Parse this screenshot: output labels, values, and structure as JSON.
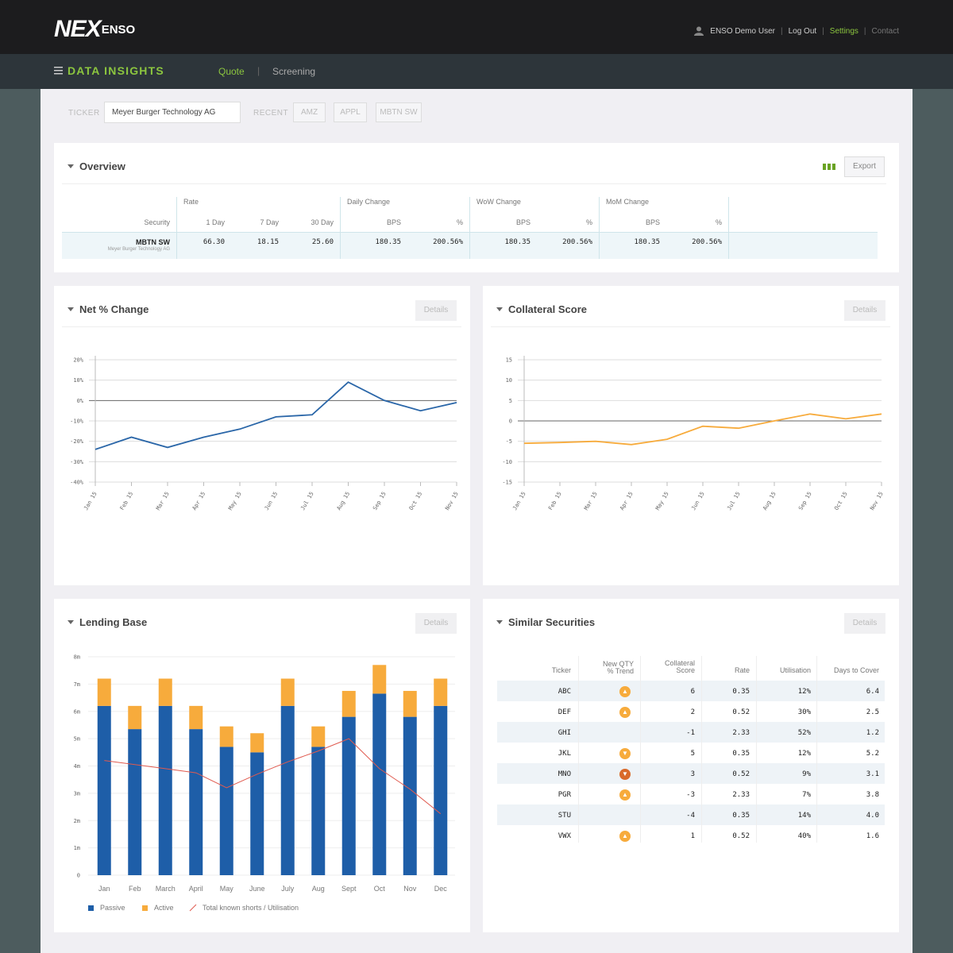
{
  "header": {
    "logo_main": "NEX",
    "logo_sub": "ENSO",
    "user_name": "ENSO Demo User",
    "logout": "Log Out",
    "settings": "Settings",
    "contact": "Contact",
    "icons": [
      "user-icon"
    ]
  },
  "subnav": {
    "brand": "DATA INSIGHTS",
    "tabs": [
      "Quote",
      "Screening"
    ],
    "active_tab": "Quote",
    "accent": "#8cc63f"
  },
  "search": {
    "ticker_label": "TICKER",
    "ticker_value": "Meyer Burger Technology AG",
    "recent_label": "RECENT",
    "recent": [
      "AMZ",
      "APPL",
      "MBTN SW"
    ]
  },
  "overview": {
    "title": "Overview",
    "export_label": "Export",
    "groups": [
      "Rate",
      "Daily Change",
      "WoW Change",
      "MoM Change"
    ],
    "columns": [
      "Security",
      "1 Day",
      "7 Day",
      "30 Day",
      "BPS",
      "%",
      "BPS",
      "%",
      "BPS",
      "%"
    ],
    "row": {
      "security": "MBTN SW",
      "security_name": "Meyer Burger Technology AG",
      "values": [
        "66.30",
        "18.15",
        "25.60",
        "180.35",
        "200.56%",
        "180.35",
        "200.56%",
        "180.35",
        "200.56%"
      ]
    }
  },
  "net_change": {
    "title": "Net % Change",
    "details": "Details",
    "chart_data": {
      "type": "line",
      "x": [
        "Jan 15",
        "Feb 15",
        "Mar 15",
        "Apr 15",
        "May 15",
        "Jun 15",
        "Jul 15",
        "Aug 15",
        "Sep 15",
        "Oct 15",
        "Nov 15"
      ],
      "y_ticks": [
        "20%",
        "10%",
        "0%",
        "-10%",
        "-20%",
        "-30%",
        "-40%"
      ],
      "ylim": [
        -40,
        20
      ],
      "series": [
        {
          "values": [
            -24,
            -18,
            -23,
            -18,
            -14,
            -8,
            -7,
            9,
            0,
            -5,
            -1
          ],
          "color": "#2a66a8"
        }
      ]
    }
  },
  "collateral": {
    "title": "Collateral Score",
    "details": "Details",
    "chart_data": {
      "type": "line",
      "x": [
        "Jan 15",
        "Feb 15",
        "Mar 15",
        "Apr 15",
        "May 15",
        "Jun 15",
        "Jul 15",
        "Aug 15",
        "Sep 15",
        "Oct 15",
        "Nov 15"
      ],
      "y_ticks": [
        "15",
        "10",
        "5",
        "0",
        "-5",
        "-10",
        "-15"
      ],
      "ylim": [
        -15,
        15
      ],
      "series": [
        {
          "values": [
            -5.5,
            -5.3,
            -5,
            -5.8,
            -4.5,
            -1.3,
            -1.8,
            0,
            1.7,
            0.5,
            1.7
          ],
          "color": "#f7ab3c"
        }
      ]
    }
  },
  "lending": {
    "title": "Lending Base",
    "details": "Details",
    "chart_data": {
      "type": "bar",
      "categories": [
        "Jan",
        "Feb",
        "March",
        "April",
        "May",
        "June",
        "July",
        "Aug",
        "Sept",
        "Oct",
        "Nov",
        "Dec"
      ],
      "y_ticks": [
        "8m",
        "7m",
        "6m",
        "5m",
        "4m",
        "3m",
        "2m",
        "1m",
        "0"
      ],
      "ylim": [
        0,
        8
      ],
      "series": [
        {
          "name": "Passive",
          "color": "#1e5ea8",
          "values": [
            6.2,
            5.35,
            6.2,
            5.35,
            4.7,
            4.5,
            6.2,
            4.7,
            5.8,
            6.65,
            5.8,
            6.2
          ]
        },
        {
          "name": "Active",
          "color": "#f7ab3c",
          "values": [
            1.0,
            0.85,
            1.0,
            0.85,
            0.75,
            0.7,
            1.0,
            0.75,
            0.95,
            1.05,
            0.95,
            1.0
          ]
        }
      ],
      "line": {
        "name": "Total known shorts / Utilisation",
        "color": "#e05a4f",
        "values": [
          4.2,
          4.05,
          3.9,
          3.75,
          3.2,
          3.7,
          4.15,
          4.55,
          5.0,
          3.9,
          3.15,
          2.25
        ]
      }
    }
  },
  "similar": {
    "title": "Similar Securities",
    "details": "Details",
    "headers": {
      "ticker": "Ticker",
      "trend1": "New QTY",
      "trend2": "% Trend",
      "score1": "Collateral",
      "score2": "Score",
      "rate": "Rate",
      "util": "Utilisation",
      "days": "Days to Cover"
    },
    "rows": [
      {
        "ticker": "ABC",
        "trend": "up",
        "score": "6",
        "rate": "0.35",
        "util": "12%",
        "days": "6.4"
      },
      {
        "ticker": "DEF",
        "trend": "up",
        "score": "2",
        "rate": "0.52",
        "util": "30%",
        "days": "2.5"
      },
      {
        "ticker": "GHI",
        "trend": "none",
        "score": "-1",
        "rate": "2.33",
        "util": "52%",
        "days": "1.2"
      },
      {
        "ticker": "JKL",
        "trend": "down",
        "score": "5",
        "rate": "0.35",
        "util": "12%",
        "days": "5.2"
      },
      {
        "ticker": "MNO",
        "trend": "down-strong",
        "score": "3",
        "rate": "0.52",
        "util": "9%",
        "days": "3.1"
      },
      {
        "ticker": "PGR",
        "trend": "up",
        "score": "-3",
        "rate": "2.33",
        "util": "7%",
        "days": "3.8"
      },
      {
        "ticker": "STU",
        "trend": "none",
        "score": "-4",
        "rate": "0.35",
        "util": "14%",
        "days": "4.0"
      },
      {
        "ticker": "VWX",
        "trend": "up",
        "score": "1",
        "rate": "0.52",
        "util": "40%",
        "days": "1.6"
      }
    ],
    "trend_colors": {
      "up": "#f7ab3c",
      "down": "#f7ab3c",
      "down-strong": "#d96a2a"
    }
  }
}
